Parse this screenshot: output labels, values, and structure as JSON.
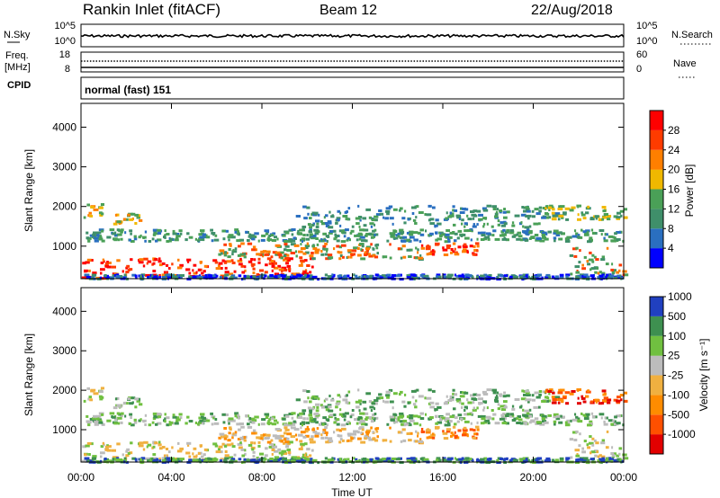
{
  "header": {
    "station": "Rankin Inlet (fitACF)",
    "beam": "Beam 12",
    "date": "22/Aug/2018"
  },
  "noise_panel": {
    "left_label": "N.Sky",
    "right_label": "N.Search",
    "left_ticks": [
      "10^5",
      "10^0"
    ],
    "right_ticks": [
      "10^5",
      "10^0"
    ]
  },
  "freq_panel": {
    "left_label_1": "Freq.",
    "left_label_2": "[MHz]",
    "right_label": "Nave",
    "left_ticks": [
      "18",
      "8"
    ],
    "right_ticks": [
      "60",
      "0"
    ]
  },
  "cpid": {
    "label": "CPID",
    "value": "normal (fast) 151"
  },
  "time_axis": {
    "label": "Time UT",
    "ticks": [
      "00:00",
      "04:00",
      "08:00",
      "12:00",
      "16:00",
      "20:00",
      "00:00"
    ]
  },
  "range_axis": {
    "label": "Slant Range [km]",
    "ticks": [
      "1000",
      "2000",
      "3000",
      "4000"
    ],
    "range": [
      180,
      4600
    ]
  },
  "colors": {
    "power": [
      "#0000ff",
      "#2a6fc0",
      "#3f8f6a",
      "#4aa057",
      "#f0b800",
      "#ff7f00",
      "#ff3b00",
      "#ff0000"
    ],
    "velocity": [
      "#e20000",
      "#ff5000",
      "#ff8c00",
      "#f0b040",
      "#bcbcbc",
      "#70c040",
      "#3e9050",
      "#2040c0"
    ]
  },
  "chart_data": [
    {
      "type": "heatmap",
      "quantity": "power",
      "xlabel": "Time UT",
      "ylabel": "Slant Range [km]",
      "colorbar_label": "Power [dB]",
      "colorbar_ticks": [
        "4",
        "8",
        "12",
        "16",
        "20",
        "24",
        "28"
      ],
      "xlim_hours": [
        0,
        24
      ],
      "ylim_km": [
        180,
        4600
      ]
    },
    {
      "type": "heatmap",
      "quantity": "velocity",
      "xlabel": "Time UT",
      "ylabel": "Slant Range [km]",
      "colorbar_label": "Velocity [m s⁻¹]",
      "colorbar_ticks": [
        "-1000",
        "-500",
        "-100",
        "-25",
        "25",
        "100",
        "500",
        "1000"
      ],
      "xlim_hours": [
        0,
        24
      ],
      "ylim_km": [
        180,
        4600
      ]
    }
  ]
}
